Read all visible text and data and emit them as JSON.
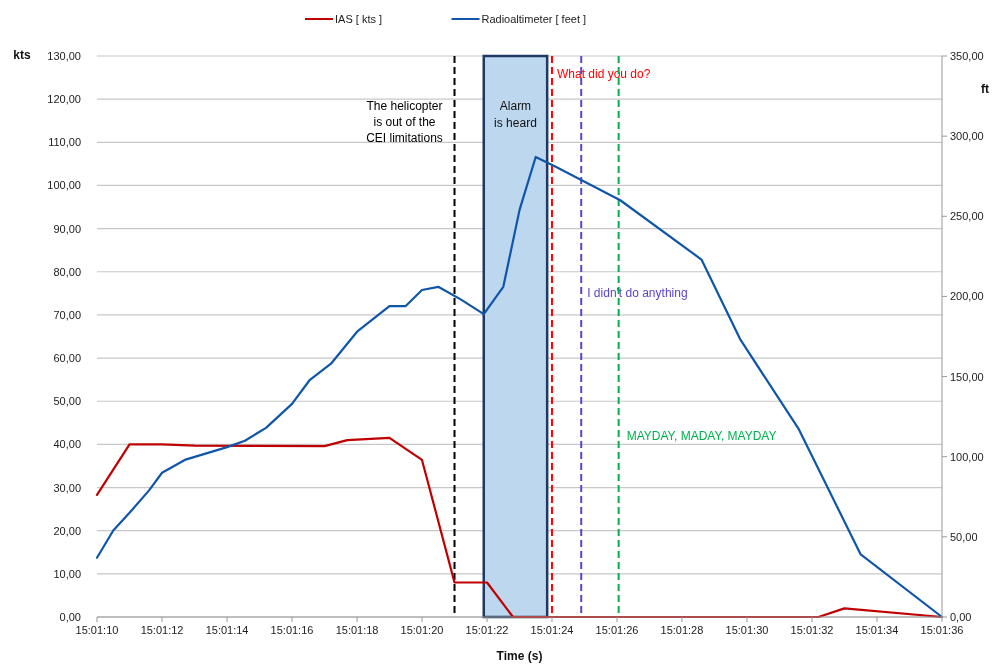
{
  "chart_data": {
    "type": "line",
    "xlabel": "Time (s)",
    "ylabel": "kts",
    "y2label": "ft",
    "xlim": [
      15.019444,
      15.026667
    ],
    "xticks": [
      {
        "value": 15.019444,
        "label": "15:01:10"
      },
      {
        "value": 15.02,
        "label": "15:01:12"
      },
      {
        "value": 15.020556,
        "label": "15:01:14"
      },
      {
        "value": 15.021111,
        "label": "15:01:16"
      },
      {
        "value": 15.021667,
        "label": "15:01:18"
      },
      {
        "value": 15.022222,
        "label": "15:01:20"
      },
      {
        "value": 15.022778,
        "label": "15:01:22"
      },
      {
        "value": 15.023333,
        "label": "15:01:24"
      },
      {
        "value": 15.023889,
        "label": "15:01:26"
      },
      {
        "value": 15.024444,
        "label": "15:01:28"
      },
      {
        "value": 15.025,
        "label": "15:01:30"
      },
      {
        "value": 15.025556,
        "label": "15:01:32"
      },
      {
        "value": 15.026111,
        "label": "15:01:34"
      },
      {
        "value": 15.026667,
        "label": "15:01:36"
      }
    ],
    "ylim": [
      0,
      130
    ],
    "yticks": [
      {
        "value": 0,
        "label": "0,00"
      },
      {
        "value": 10,
        "label": "10,00"
      },
      {
        "value": 20,
        "label": "20,00"
      },
      {
        "value": 30,
        "label": "30,00"
      },
      {
        "value": 40,
        "label": "40,00"
      },
      {
        "value": 50,
        "label": "50,00"
      },
      {
        "value": 60,
        "label": "60,00"
      },
      {
        "value": 70,
        "label": "70,00"
      },
      {
        "value": 80,
        "label": "80,00"
      },
      {
        "value": 90,
        "label": "90,00"
      },
      {
        "value": 100,
        "label": "100,00"
      },
      {
        "value": 110,
        "label": "110,00"
      },
      {
        "value": 120,
        "label": "120,00"
      },
      {
        "value": 130,
        "label": "130,00"
      }
    ],
    "y2lim": [
      0,
      350
    ],
    "y2ticks": [
      {
        "value": 0,
        "label": "0,00"
      },
      {
        "value": 50,
        "label": "50,00"
      },
      {
        "value": 100,
        "label": "100,00"
      },
      {
        "value": 150,
        "label": "150,00"
      },
      {
        "value": 200,
        "label": "200,00"
      },
      {
        "value": 250,
        "label": "250,00"
      },
      {
        "value": 300,
        "label": "300,00"
      },
      {
        "value": 350,
        "label": "350,00"
      }
    ],
    "grid": "y",
    "legend": "top",
    "marker": "none",
    "line_style": "solid",
    "series": [
      {
        "name": "IAS [ kts ]",
        "color": "#c00000",
        "x": [
          15.019444,
          15.019722,
          15.02,
          15.020278,
          15.021389,
          15.021583,
          15.021944,
          15.022222,
          15.0225,
          15.022778,
          15.023,
          15.025611,
          15.025833,
          15.026667
        ],
        "values": [
          28.3,
          40,
          40,
          39.7,
          39.6,
          41,
          41.5,
          36.4,
          8,
          8,
          0,
          0,
          2,
          0
        ]
      },
      {
        "name": "Radioaltimeter [ feet ]",
        "color": "#0f56a8",
        "axis": "y2",
        "x": [
          15.019444,
          15.019583,
          15.019722,
          15.019889,
          15.02,
          15.020194,
          15.020556,
          15.020708,
          15.020889,
          15.021111,
          15.021264,
          15.021444,
          15.021667,
          15.021944,
          15.022083,
          15.022222,
          15.022361,
          15.022556,
          15.02275,
          15.022917,
          15.023056,
          15.023194,
          15.023361,
          15.023917,
          15.024611,
          15.024944,
          15.025444,
          15.025972,
          15.026667
        ],
        "values": [
          37,
          54,
          65,
          79,
          90,
          98,
          106,
          110,
          118,
          133,
          148,
          158,
          178,
          194,
          194,
          204,
          206,
          198,
          189,
          206,
          254,
          287,
          281,
          260,
          223,
          173,
          117,
          39,
          0
        ]
      }
    ],
    "bands": [
      {
        "axis": "x",
        "from": 15.02275,
        "to": 15.023292,
        "label": "Alarm is heard",
        "color": "#bdd7ee"
      }
    ],
    "ref_lines": [
      {
        "axis": "x",
        "value": 15.0225,
        "label": "The helicopter is out of the CEI limitations",
        "color": "#000000",
        "line_style": "dashed"
      },
      {
        "axis": "x",
        "value": 15.023333,
        "label": "What did you do?",
        "color": "#ff0000",
        "line_style": "dashed"
      },
      {
        "axis": "x",
        "value": 15.023583,
        "label": "I didn't do anything",
        "color": "#5a46c8",
        "line_style": "dashed"
      },
      {
        "axis": "x",
        "value": 15.023903,
        "label": "MAYDAY, MADAY, MAYDAY",
        "color": "#00b050",
        "line_style": "dashed"
      }
    ]
  }
}
